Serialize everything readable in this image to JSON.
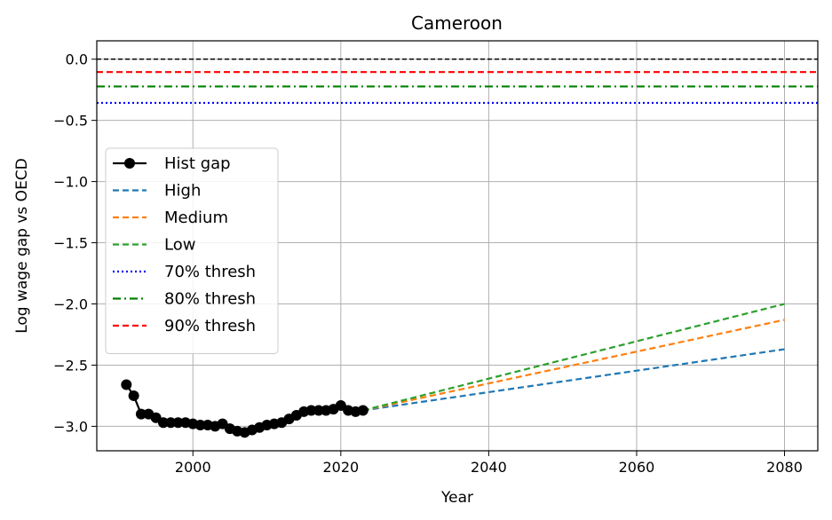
{
  "chart_data": {
    "type": "line",
    "title": "Cameroon",
    "xlabel": "Year",
    "ylabel": "Log wage gap vs OECD",
    "xlim": [
      1987,
      2084.5
    ],
    "ylim": [
      -3.2,
      0.15
    ],
    "xticks": [
      2000,
      2020,
      2040,
      2060,
      2080
    ],
    "yticks": [
      0.0,
      -0.5,
      -1.0,
      -1.5,
      -2.0,
      -2.5,
      -3.0
    ],
    "xtick_labels": [
      "2000",
      "2020",
      "2040",
      "2060",
      "2080"
    ],
    "ytick_labels": [
      "0.0",
      "−0.5",
      "−1.0",
      "−1.5",
      "−2.0",
      "−2.5",
      "−3.0"
    ],
    "grid": true,
    "legend_position": "center-left",
    "zero_line": {
      "y": 0.0,
      "color": "#000000",
      "style": "dashed"
    },
    "thresholds": [
      {
        "name": "70% thresh",
        "y": -0.357,
        "color": "#0000ff",
        "style": "dotted"
      },
      {
        "name": "80% thresh",
        "y": -0.223,
        "color": "#008000",
        "style": "dashdot"
      },
      {
        "name": "90% thresh",
        "y": -0.105,
        "color": "#ff0000",
        "style": "dashed"
      }
    ],
    "hist": {
      "name": "Hist gap",
      "color": "#000000",
      "x": [
        1991,
        1992,
        1993,
        1994,
        1995,
        1996,
        1997,
        1998,
        1999,
        2000,
        2001,
        2002,
        2003,
        2004,
        2005,
        2006,
        2007,
        2008,
        2009,
        2010,
        2011,
        2012,
        2013,
        2014,
        2015,
        2016,
        2017,
        2018,
        2019,
        2020,
        2021,
        2022,
        2023
      ],
      "y": [
        -2.66,
        -2.75,
        -2.9,
        -2.9,
        -2.93,
        -2.97,
        -2.97,
        -2.97,
        -2.97,
        -2.98,
        -2.99,
        -2.99,
        -3.0,
        -2.98,
        -3.02,
        -3.04,
        -3.05,
        -3.03,
        -3.01,
        -2.99,
        -2.98,
        -2.97,
        -2.94,
        -2.91,
        -2.88,
        -2.87,
        -2.87,
        -2.87,
        -2.86,
        -2.83,
        -2.87,
        -2.88,
        -2.87
      ]
    },
    "projections": [
      {
        "name": "High",
        "color": "#1f77b4",
        "x": [
          2023,
          2080
        ],
        "y": [
          -2.87,
          -2.37
        ]
      },
      {
        "name": "Medium",
        "color": "#ff7f0e",
        "x": [
          2023,
          2080
        ],
        "y": [
          -2.87,
          -2.13
        ]
      },
      {
        "name": "Low",
        "color": "#2ca02c",
        "x": [
          2023,
          2080
        ],
        "y": [
          -2.87,
          -2.0
        ]
      }
    ],
    "legend": [
      {
        "label": "Hist gap",
        "kind": "marker-line",
        "color": "#000000",
        "style": "solid"
      },
      {
        "label": "High",
        "kind": "line",
        "color": "#1f77b4",
        "style": "dashed"
      },
      {
        "label": "Medium",
        "kind": "line",
        "color": "#ff7f0e",
        "style": "dashed"
      },
      {
        "label": "Low",
        "kind": "line",
        "color": "#2ca02c",
        "style": "dashed"
      },
      {
        "label": "70% thresh",
        "kind": "line",
        "color": "#0000ff",
        "style": "dotted"
      },
      {
        "label": "80% thresh",
        "kind": "line",
        "color": "#008000",
        "style": "dashdot"
      },
      {
        "label": "90% thresh",
        "kind": "line",
        "color": "#ff0000",
        "style": "dashed"
      }
    ]
  }
}
